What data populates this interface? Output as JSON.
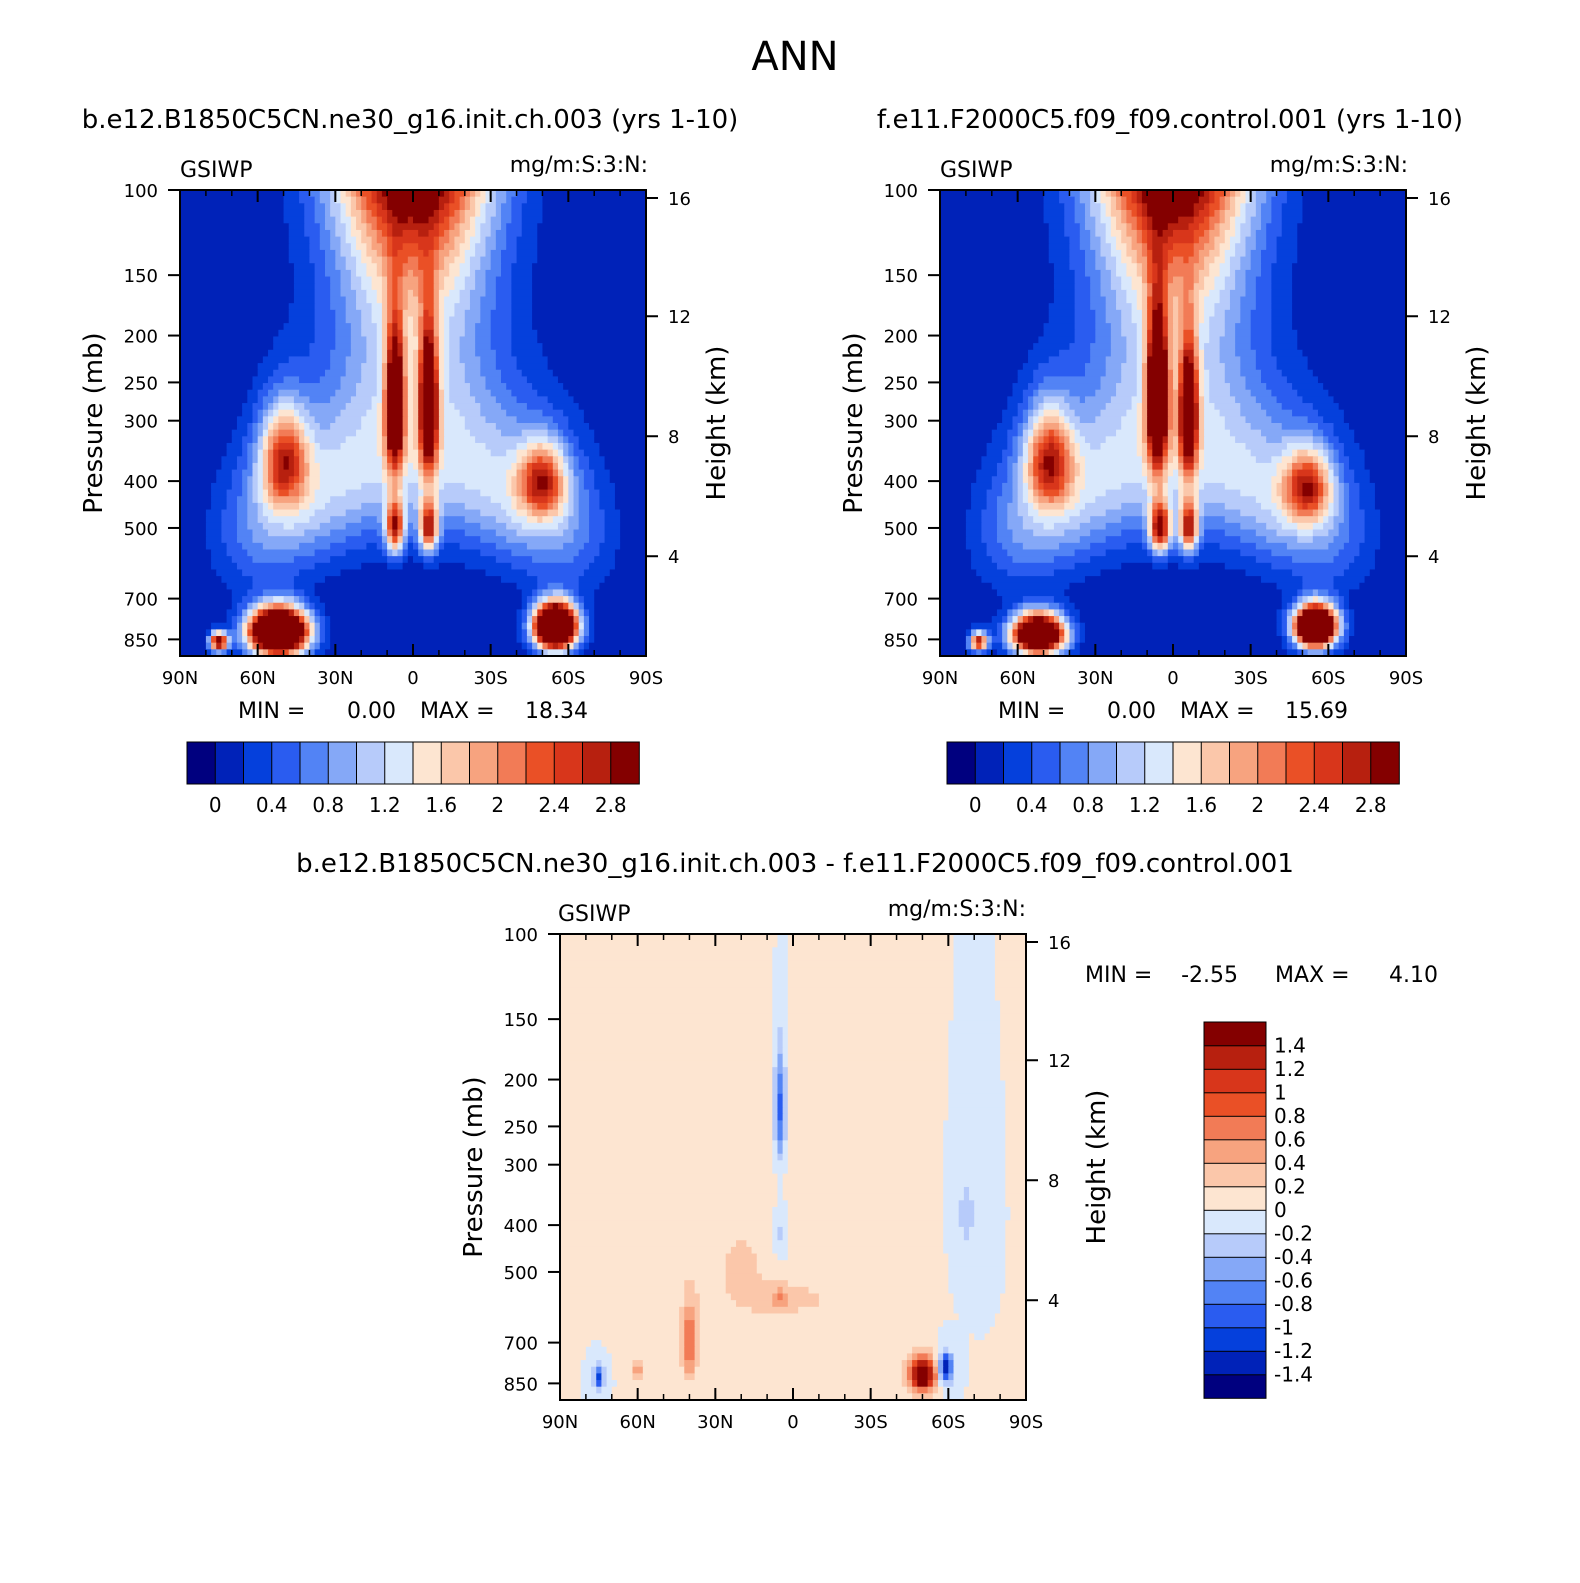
{
  "figure_title": "ANN",
  "colors": {
    "control_scale": [
      "#00007f",
      "#0022b8",
      "#0540dc",
      "#2a5cf0",
      "#5283f5",
      "#85a8f7",
      "#b7cbfa",
      "#d9e8fc",
      "#fde5d1",
      "#fbc7aa",
      "#f7a37f",
      "#f27b56",
      "#ea5026",
      "#d8361b",
      "#b7200f",
      "#840000"
    ],
    "diff_scale": [
      "#00007f",
      "#0022b8",
      "#0540dc",
      "#2a5cf0",
      "#5283f5",
      "#85a8f7",
      "#b7cbfa",
      "#d9e8fc",
      "#fde5d1",
      "#fbc7aa",
      "#f7a37f",
      "#f27b56",
      "#ea5026",
      "#d8361b",
      "#b7200f",
      "#840000"
    ],
    "axis": "#000000"
  },
  "chart_data": [
    {
      "type": "heatmap",
      "panel": "case",
      "title": "b.e12.B1850C5CN.ne30_g16.init.ch.003 (yrs 1-10)",
      "variable": "GSIWP",
      "units": "mg/m:S:3:N:",
      "xlabel": "",
      "ylabel": "Pressure (mb)",
      "y2label": "Height (km)",
      "x_ticks": [
        "90N",
        "60N",
        "30N",
        "0",
        "30S",
        "60S",
        "90S"
      ],
      "y_ticks": [
        100,
        150,
        200,
        250,
        300,
        400,
        500,
        700,
        850
      ],
      "y2_ticks": [
        4,
        8,
        12,
        16
      ],
      "xlim": [
        -90,
        90
      ],
      "ylim": [
        100,
        920
      ],
      "min_label": "MIN =",
      "min_value": "0.00",
      "max_label": "MAX =",
      "max_value": "18.34",
      "colorbar_levels": [
        "0",
        "0.4",
        "0.8",
        "1.2",
        "1.6",
        "2",
        "2.4",
        "2.8"
      ],
      "features": [
        {
          "lat": 50,
          "p": 360,
          "amp": 2.0,
          "slat": 9,
          "sp": 85
        },
        {
          "lat": -50,
          "p": 400,
          "amp": 1.9,
          "slat": 9,
          "sp": 70
        },
        {
          "lat": 7,
          "p": 280,
          "amp": 3.0,
          "slat": 3.5,
          "sp": 95
        },
        {
          "lat": -6,
          "p": 280,
          "amp": 3.0,
          "slat": 3.5,
          "sp": 95
        },
        {
          "lat": 7,
          "p": 500,
          "amp": 2.4,
          "slat": 3.5,
          "sp": 60
        },
        {
          "lat": -6,
          "p": 500,
          "amp": 2.4,
          "slat": 3.5,
          "sp": 60
        },
        {
          "lat": 52,
          "p": 820,
          "amp": 6.0,
          "slat": 11,
          "sp": 90
        },
        {
          "lat": -55,
          "p": 800,
          "amp": 6.0,
          "slat": 8,
          "sp": 85
        },
        {
          "lat": 75,
          "p": 860,
          "amp": 3.2,
          "slat": 3.5,
          "sp": 40
        }
      ]
    },
    {
      "type": "heatmap",
      "panel": "control",
      "title": "f.e11.F2000C5.f09_f09.control.001 (yrs 1-10)",
      "variable": "GSIWP",
      "units": "mg/m:S:3:N:",
      "xlabel": "",
      "ylabel": "Pressure (mb)",
      "y2label": "Height (km)",
      "x_ticks": [
        "90N",
        "60N",
        "30N",
        "0",
        "30S",
        "60S",
        "90S"
      ],
      "y_ticks": [
        100,
        150,
        200,
        250,
        300,
        400,
        500,
        700,
        850
      ],
      "y2_ticks": [
        4,
        8,
        12,
        16
      ],
      "xlim": [
        -90,
        90
      ],
      "ylim": [
        100,
        920
      ],
      "min_label": "MIN =",
      "min_value": "0.00",
      "max_label": "MAX =",
      "max_value": "15.69",
      "colorbar_levels": [
        "0",
        "0.4",
        "0.8",
        "1.2",
        "1.6",
        "2",
        "2.4",
        "2.8"
      ],
      "features": [
        {
          "lat": 48,
          "p": 360,
          "amp": 2.0,
          "slat": 9,
          "sp": 85
        },
        {
          "lat": -52,
          "p": 410,
          "amp": 1.9,
          "slat": 9,
          "sp": 70
        },
        {
          "lat": 6,
          "p": 270,
          "amp": 3.4,
          "slat": 4,
          "sp": 100
        },
        {
          "lat": -6,
          "p": 290,
          "amp": 2.8,
          "slat": 3.5,
          "sp": 90
        },
        {
          "lat": 5,
          "p": 500,
          "amp": 2.6,
          "slat": 4,
          "sp": 60
        },
        {
          "lat": -6,
          "p": 500,
          "amp": 2.4,
          "slat": 3.5,
          "sp": 60
        },
        {
          "lat": 52,
          "p": 830,
          "amp": 5.0,
          "slat": 10,
          "sp": 80
        },
        {
          "lat": -55,
          "p": 800,
          "amp": 5.5,
          "slat": 8,
          "sp": 80
        },
        {
          "lat": 75,
          "p": 860,
          "amp": 2.8,
          "slat": 3.5,
          "sp": 40
        }
      ]
    },
    {
      "type": "heatmap",
      "panel": "difference",
      "title": "b.e12.B1850C5CN.ne30_g16.init.ch.003 - f.e11.F2000C5.f09_f09.control.001",
      "variable": "GSIWP",
      "units": "mg/m:S:3:N:",
      "xlabel": "",
      "ylabel": "Pressure (mb)",
      "y2label": "Height (km)",
      "x_ticks": [
        "90N",
        "60N",
        "30N",
        "0",
        "30S",
        "60S",
        "90S"
      ],
      "y_ticks": [
        100,
        150,
        200,
        250,
        300,
        400,
        500,
        700,
        850
      ],
      "y2_ticks": [
        4,
        8,
        12,
        16
      ],
      "xlim": [
        -90,
        90
      ],
      "ylim": [
        100,
        920
      ],
      "min_label": "MIN =",
      "min_value": "-2.55",
      "max_label": "MAX =",
      "max_value": "4.10",
      "colorbar_levels": [
        "1.4",
        "1.2",
        "1",
        "0.8",
        "0.6",
        "0.4",
        "0.2",
        "0",
        "-0.2",
        "-0.4",
        "-0.6",
        "-0.8",
        "-1",
        "-1.2",
        "-1.4"
      ],
      "features": [
        {
          "lat": 5,
          "p": 230,
          "amp": -0.9,
          "slat": 2,
          "sp": 60
        },
        {
          "lat": 5,
          "p": 420,
          "amp": -0.35,
          "slat": 3,
          "sp": 60
        },
        {
          "lat": -50,
          "p": 815,
          "amp": 2.0,
          "slat": 5,
          "sp": 65
        },
        {
          "lat": -59,
          "p": 790,
          "amp": -1.5,
          "slat": 2.5,
          "sp": 55
        },
        {
          "lat": 75,
          "p": 830,
          "amp": -1.1,
          "slat": 2,
          "sp": 45
        },
        {
          "lat": 40,
          "p": 700,
          "amp": 0.8,
          "slat": 3,
          "sp": 130
        },
        {
          "lat": 60,
          "p": 800,
          "amp": 0.55,
          "slat": 2,
          "sp": 50
        },
        {
          "lat": 0,
          "p": 570,
          "amp": 0.3,
          "slat": 13,
          "sp": 35
        },
        {
          "lat": 5,
          "p": 560,
          "amp": 0.3,
          "slat": 2,
          "sp": 30
        },
        {
          "lat": -67,
          "p": 380,
          "amp": -0.3,
          "slat": 3.5,
          "sp": 80
        },
        {
          "lat": 20,
          "p": 500,
          "amp": 0.22,
          "slat": 22,
          "sp": 210
        },
        {
          "lat": -40,
          "p": 500,
          "amp": 0.2,
          "slat": 8,
          "sp": 180
        }
      ]
    }
  ]
}
